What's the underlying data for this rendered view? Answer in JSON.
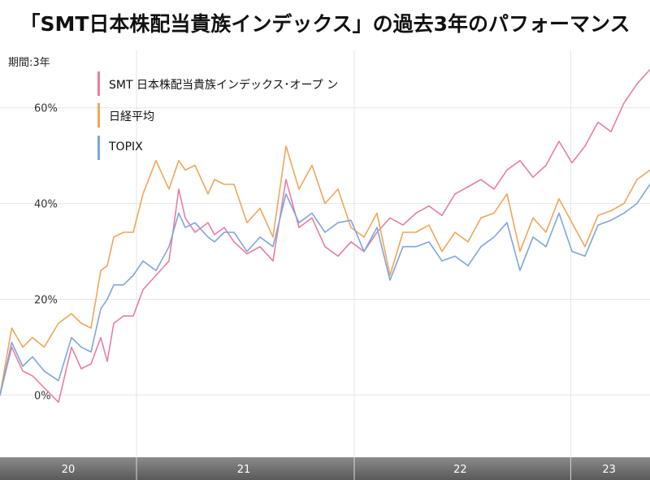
{
  "title": "「SMT日本株配当貴族インデックス」の過去3年のパフォーマンス",
  "period_label": "期間:3年",
  "colors": {
    "smt": "#e87ea1",
    "nikkei": "#f1a65a",
    "topix": "#7ea6dc",
    "axis_band": "#6b6b6b",
    "grid": "#e6e6e6"
  },
  "chart_data": {
    "type": "line",
    "title": "「SMT日本株配当貴族インデックス」の過去3年のパフォーマンス",
    "xlabel": "",
    "ylabel": "",
    "ylim": [
      -13,
      72
    ],
    "xlim": [
      0,
      100
    ],
    "y_ticks": [
      0,
      20,
      40,
      60
    ],
    "y_tick_labels": [
      "0%",
      "20%",
      "40%",
      "60%"
    ],
    "x_ticks": [
      10.5,
      37.5,
      70.8,
      93.7
    ],
    "x_tick_labels": [
      "20",
      "21",
      "22",
      "23"
    ],
    "x_year_boundaries": [
      21,
      54.5,
      87.8
    ],
    "grid": true,
    "legend": "top-left",
    "series": [
      {
        "name": "SMT 日本株配当貴族インデックス･オープ ン",
        "color": "#e87ea1",
        "x": [
          0,
          1.8,
          3.5,
          5,
          6.8,
          9,
          11,
          12.5,
          14,
          15.5,
          16.5,
          17.5,
          19,
          20.5,
          22,
          24,
          26,
          27.5,
          28.5,
          30,
          32,
          33,
          34.5,
          36,
          38,
          40,
          42,
          44,
          46,
          48,
          50,
          52,
          54,
          56,
          58,
          60,
          62,
          64,
          66,
          68,
          70,
          72,
          74,
          76,
          78,
          80,
          82,
          84,
          86,
          88,
          90,
          92,
          94,
          96,
          98,
          100
        ],
        "y": [
          0,
          10,
          5,
          4,
          1.5,
          -1.5,
          10,
          5.5,
          6.5,
          12,
          7,
          15,
          16.5,
          16.5,
          22,
          25,
          28,
          43,
          37,
          34,
          36,
          33.5,
          35,
          32,
          29.5,
          31,
          28,
          45,
          35,
          37,
          31,
          29,
          32,
          30,
          34,
          37,
          35.5,
          38,
          39.5,
          37.5,
          42,
          43.5,
          45,
          43,
          47,
          49,
          45.5,
          48,
          53,
          48.5,
          52,
          57,
          55,
          61,
          65,
          68
        ]
      },
      {
        "name": "日経平均",
        "color": "#f1a65a",
        "x": [
          0,
          1.8,
          3.5,
          5,
          6.8,
          9,
          11,
          12.5,
          14,
          15.5,
          16.5,
          17.5,
          19,
          20.5,
          22,
          24,
          26,
          27.5,
          28.5,
          30,
          32,
          33,
          34.5,
          36,
          38,
          40,
          42,
          44,
          46,
          48,
          50,
          52,
          54,
          56,
          58,
          60,
          62,
          64,
          66,
          68,
          70,
          72,
          74,
          76,
          78,
          80,
          82,
          84,
          86,
          88,
          90,
          92,
          94,
          96,
          98,
          100
        ],
        "y": [
          0,
          14,
          10,
          12,
          10,
          15,
          17,
          15,
          14,
          26,
          27,
          33,
          34,
          34,
          42,
          49,
          43,
          49,
          47,
          48,
          42,
          45,
          44,
          44,
          36,
          39,
          33,
          52,
          43,
          48,
          40,
          43,
          35,
          33,
          38,
          25,
          34,
          34,
          35.5,
          30,
          34,
          32,
          37,
          38,
          42,
          30,
          37,
          34,
          41,
          36,
          31,
          37.5,
          38.5,
          40,
          45,
          47
        ]
      },
      {
        "name": "TOPIX",
        "color": "#7ea6dc",
        "x": [
          0,
          1.8,
          3.5,
          5,
          6.8,
          9,
          11,
          12.5,
          14,
          15.5,
          16.5,
          17.5,
          19,
          20.5,
          22,
          24,
          26,
          27.5,
          28.5,
          30,
          32,
          33,
          34.5,
          36,
          38,
          40,
          42,
          44,
          46,
          48,
          50,
          52,
          54,
          56,
          58,
          60,
          62,
          64,
          66,
          68,
          70,
          72,
          74,
          76,
          78,
          80,
          82,
          84,
          86,
          88,
          90,
          92,
          94,
          96,
          98,
          100
        ],
        "y": [
          0,
          11,
          6,
          8,
          5,
          3,
          12,
          10,
          9,
          18,
          20,
          23,
          23,
          25,
          28,
          26,
          31,
          38,
          35,
          36,
          33,
          32,
          34,
          34,
          30,
          33,
          31,
          42,
          36,
          38,
          34,
          36,
          36.5,
          30,
          35,
          24,
          31,
          31,
          32,
          28,
          29,
          27,
          31,
          33,
          36,
          26,
          33,
          31,
          38,
          30,
          29,
          35.5,
          36.5,
          38,
          40,
          44
        ]
      }
    ]
  }
}
